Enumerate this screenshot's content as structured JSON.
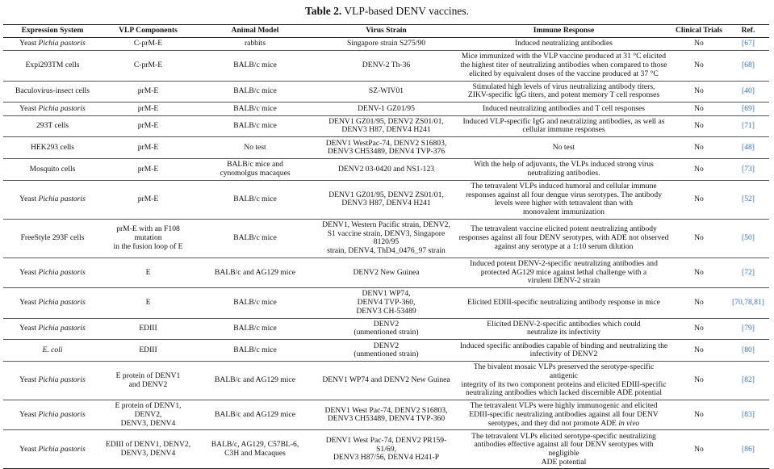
{
  "caption": {
    "label": "Table 2.",
    "text": " VLP-based DENV vaccines."
  },
  "columns": [
    "Expression System",
    "VLP Components",
    "Animal Model",
    "Virus Strain",
    "Immune Response",
    "Clinical Trials",
    "Ref."
  ],
  "rows": [
    {
      "expr": {
        "text": "Yeast ",
        "italic": "Pichia pastoris"
      },
      "vlp": "C-prM-E",
      "animal": "rabbits",
      "virus": "Singapore strain S275/90",
      "immune": {
        "text": "Induced neutralizing antibodies"
      },
      "trials": "No",
      "ref": "[67]"
    },
    {
      "expr": {
        "text": "Expi293TM cells"
      },
      "vlp": "C-prM-E",
      "animal": "BALB/c mice",
      "virus": "DENV-2 Th-36",
      "immune": {
        "text": "Mice immunized with the VLP vaccine produced at 31 °C elicited\nthe highest titer of neutralizing antibodies when compared to those\nelicited by equivalent doses of the vaccine produced at 37 °C"
      },
      "trials": "No",
      "ref": "[68]"
    },
    {
      "expr": {
        "text": "Baculovirus-insect cells"
      },
      "vlp": "prM-E",
      "animal": "BALB/c mice",
      "virus": "SZ-WIV01",
      "immune": {
        "text": "Stimulated high levels of virus neutralizing antibody titers,\nZIKV-specific IgG titers, and potent memory T cell responses"
      },
      "trials": "No",
      "ref": "[40]"
    },
    {
      "expr": {
        "text": "Yeast ",
        "italic": "Pichia pastoris"
      },
      "vlp": "prM-E",
      "animal": "BALB/c mice",
      "virus": "DENV-1 GZ01/95",
      "immune": {
        "text": "Induced neutralizing antibodies and T cell responses"
      },
      "trials": "No",
      "ref": "[69]"
    },
    {
      "expr": {
        "text": "293T cells"
      },
      "vlp": "prM-E",
      "animal": "BALB/c mice",
      "virus": "DENV1 GZ01/95, DENV2 ZS01/01,\nDENV3 H87, DENV4 H241",
      "immune": {
        "text": "Induced VLP-specific IgG and neutralizing antibodies, as well as\ncellular immune responses"
      },
      "trials": "No",
      "ref": "[71]"
    },
    {
      "expr": {
        "text": "HEK293 cells"
      },
      "vlp": "prM-E",
      "animal": "No test",
      "virus": "DENV1 WestPac-74, DENV2 S16803,\nDENV3 CH53489, DENV4 TVP-376",
      "immune": {
        "text": "No test"
      },
      "trials": "No",
      "ref": "[48]"
    },
    {
      "expr": {
        "text": "Mosquito cells"
      },
      "vlp": "prM-E",
      "animal": "BALB/c mice and\ncynomolgus macaques",
      "virus": "DENV2 03-0420 and NS1-123",
      "immune": {
        "text": "With the help of adjuvants, the VLPs induced strong virus\nneutralizing antibodies."
      },
      "trials": "No",
      "ref": "[73]"
    },
    {
      "expr": {
        "text": "Yeast ",
        "italic": "Pichia pastoris"
      },
      "vlp": "prM-E",
      "animal": "BALB/c mice",
      "virus": "DENV1 GZ01/95, DENV2 ZS01/01,\nDENV3 H87, DENV4 H241",
      "immune": {
        "text": "The tetravalent VLPs induced humoral and cellular immune\nresponses against all four dengue virus serotypes. The antibody\nlevels were higher with tetravalent than with\nmonovalent immunization"
      },
      "trials": "No",
      "ref": "[52]"
    },
    {
      "expr": {
        "text": "FreeStyle 293F cells"
      },
      "vlp": "prM-E with an F108 mutation\nin the fusion loop of E",
      "animal": "BALB/c mice",
      "virus": "DENV1, Western Pacific strain, DENV2,\nS1 vaccine strain, DENV3, Singapore 8120/95\nstrain, DENV4, ThD4_0476_97 strain",
      "immune": {
        "text": "The tetravalent vaccine elicited potent neutralizing antibody\nresponses against all four DENV serotypes, with ADE not observed\nagainst any serotype at a 1:10 serum dilution"
      },
      "trials": "No",
      "ref": "[50]"
    },
    {
      "expr": {
        "text": "Yeast ",
        "italic": "Pichia pastoris"
      },
      "vlp": "E",
      "animal": "BALB/c and AG129 mice",
      "virus": "DENV2 New Guinea",
      "immune": {
        "text": "Induced potent DENV-2-specific neutralizing antibodies and\nprotected AG129 mice against lethal challenge with a\nvirulent DENV-2 strain"
      },
      "trials": "No",
      "ref": "[72]"
    },
    {
      "expr": {
        "text": "Yeast ",
        "italic": "Pichia pastoris"
      },
      "vlp": "E",
      "animal": "BALB/c mice",
      "virus": "DENV1 WP74,\nDENV4 TVP-360,\nDENV3 CH-53489",
      "immune": {
        "text": "Elicited EDIII-specific neutralizing antibody response in mice"
      },
      "trials": "No",
      "ref": "[70,78,81]"
    },
    {
      "expr": {
        "text": "Yeast ",
        "italic": "Pichia pastoris"
      },
      "vlp": "EDIII",
      "animal": "BALB/c mice",
      "virus": "DENV2\n(unmentioned strain)",
      "immune": {
        "text": "Elicited DENV-2-specific antibodies which could\nneutralize its infectivity"
      },
      "trials": "No",
      "ref": "[79]"
    },
    {
      "expr": {
        "text": "",
        "italic": "E. coli"
      },
      "vlp": "EDIII",
      "animal": "BALB/c mice",
      "virus": "DENV2\n(unmentioned strain)",
      "immune": {
        "text": "Induced specific antibodies capable of binding and neutralizing the\ninfectivity of DENV2"
      },
      "trials": "No",
      "ref": "[80]"
    },
    {
      "expr": {
        "text": "Yeast ",
        "italic": "Pichia pastoris"
      },
      "vlp": "E protein of DENV1\nand DENV2",
      "animal": "BALB/c and AG129 mice",
      "virus": "DENV1 WP74 and DENV2 New Guinea",
      "immune": {
        "text": "The bivalent mosaic VLPs preserved the serotype-specific antigenic\nintegrity of its two component proteins and elicited EDIII-specific\nneutralizing antibodies which lacked discernible ADE potential"
      },
      "trials": "No",
      "ref": "[82]"
    },
    {
      "expr": {
        "text": "Yeast ",
        "italic": "Pichia pastoris"
      },
      "vlp": "E protein of DENV1, DENV2,\nDENV3, DENV4",
      "animal": "BALB/c and AG129 mice",
      "virus": "DENV1 West Pac-74, DENV2 S16803,\nDENV3 CH53489, DENV4 TVP-360",
      "immune": {
        "text": "The tetravalent VLPs were highly immunogenic and elicited\nEDIII-specific neutralizing antibodies against all four DENV\nserotypes, and they did not promote ADE ",
        "italic": "in vivo"
      },
      "trials": "No",
      "ref": "[83]"
    },
    {
      "expr": {
        "text": "Yeast ",
        "italic": "Pichia pastoris"
      },
      "vlp": "EDIII of DENV1, DENV2,\nDENV3, DENV4",
      "animal": "BALB/c, AG129, C57BL-6,\nC3H and Macaques",
      "virus": "DENV1 West Pac-74, DENV2 PR159-S1/69,\nDENV3 H87/56, DENV4 H241-P",
      "immune": {
        "text": "The tetravalent VLPs elicited serotype-specific neutralizing\nantibodies effective against all four DENV serotypes with negligible\nADE potential"
      },
      "trials": "No",
      "ref": "[86]"
    }
  ],
  "colors": {
    "ref_link": "#3a72b8",
    "rule": "#222222"
  }
}
